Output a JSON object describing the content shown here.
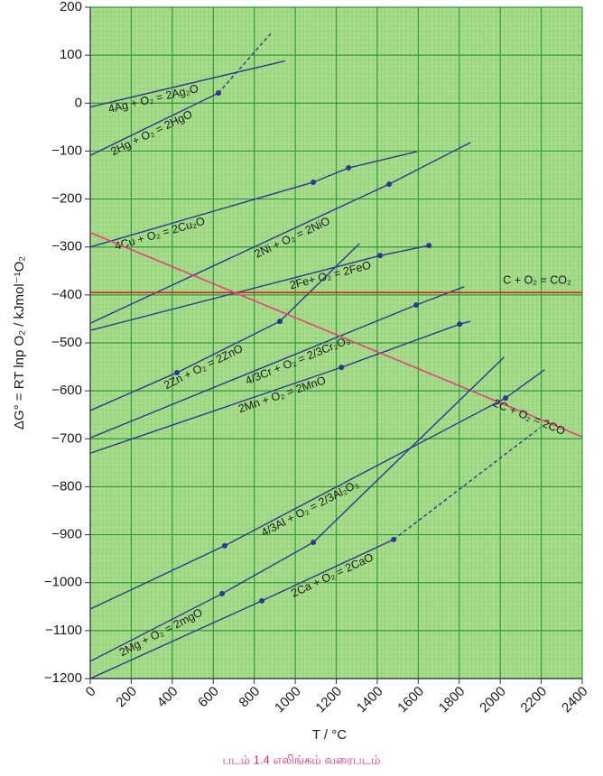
{
  "chart_data": {
    "type": "line",
    "xlabel": "T / °C",
    "ylabel": "ΔG° = RT lnp O₂ / kJmol⁻¹O₂",
    "caption": "படம் 1.4 எலிங்கம் வரைபடம்",
    "xlim": [
      0,
      2400
    ],
    "ylim": [
      -1200,
      200
    ],
    "xticks": [
      0,
      200,
      400,
      600,
      800,
      1000,
      1200,
      1400,
      1600,
      1800,
      2000,
      2200,
      2400
    ],
    "yticks": [
      {
        "value": -1200,
        "label": "−1200"
      },
      {
        "value": -1100,
        "label": "−1100"
      },
      {
        "value": -1000,
        "label": "−1000"
      },
      {
        "value": -900,
        "label": "−900"
      },
      {
        "value": -800,
        "label": "−800"
      },
      {
        "value": -700,
        "label": "−700"
      },
      {
        "value": -600,
        "label": "−600"
      },
      {
        "value": -500,
        "label": "−500"
      },
      {
        "value": -400,
        "label": "−400"
      },
      {
        "value": -300,
        "label": "−300"
      },
      {
        "value": -200,
        "label": "−200"
      },
      {
        "value": -100,
        "label": "−100"
      },
      0,
      100,
      200
    ],
    "grid": true,
    "series": [
      {
        "name": "4Ag + O₂ = 2Ag₂O",
        "color": "#2b3990",
        "x": [
          0,
          950
        ],
        "values": [
          -8,
          88
        ],
        "dashed": [
          false
        ],
        "markers": [
          false,
          false
        ]
      },
      {
        "name": "2Hg + O₂ = 2HgO",
        "color": "#2b3990",
        "x": [
          0,
          625,
          880
        ],
        "values": [
          -109,
          21,
          145
        ],
        "dashed": [
          false,
          true
        ],
        "markers": [
          false,
          true,
          false
        ]
      },
      {
        "name": "4Cu + O₂ = 2Cu₂O",
        "color": "#2b3990",
        "x": [
          0,
          1088,
          1260,
          1595
        ],
        "values": [
          -300,
          -165,
          -135,
          -101
        ],
        "dashed": [
          false,
          false,
          false
        ],
        "markers": [
          false,
          true,
          true,
          false
        ]
      },
      {
        "name": "2Ni + O₂ = 2NiO",
        "color": "#2b3990",
        "x": [
          0,
          1458,
          1855
        ],
        "values": [
          -459,
          -169,
          -82
        ],
        "dashed": [
          false,
          false
        ],
        "markers": [
          false,
          true,
          false
        ]
      },
      {
        "name": "2Fe+ O₂ = 2FeO",
        "color": "#2b3990",
        "x": [
          0,
          1414,
          1652
        ],
        "values": [
          -474,
          -318,
          -297
        ],
        "dashed": [
          false,
          false
        ],
        "markers": [
          false,
          true,
          true
        ]
      },
      {
        "name": "2Zn + O₂ = 2ZnO",
        "color": "#2b3990",
        "x": [
          0,
          423,
          925,
          1313
        ],
        "values": [
          -641,
          -562,
          -455,
          -293
        ],
        "dashed": [
          false,
          false,
          false
        ],
        "markers": [
          false,
          true,
          true,
          false
        ]
      },
      {
        "name": "4/3Cr + O₂ = 2/3Cr₂O₃",
        "color": "#2b3990",
        "x": [
          0,
          1590,
          1824
        ],
        "values": [
          -698,
          -421,
          -383
        ],
        "dashed": [
          false,
          false
        ],
        "markers": [
          false,
          true,
          false
        ]
      },
      {
        "name": "2Mn + O₂ = 2MnO",
        "color": "#2b3990",
        "x": [
          0,
          1225,
          1802,
          1855
        ],
        "values": [
          -730,
          -551,
          -461,
          -455
        ],
        "dashed": [
          false,
          false,
          false
        ],
        "markers": [
          false,
          true,
          true,
          false
        ]
      },
      {
        "name": "C + O₂ = CO₂",
        "color": "#e02020",
        "x": [
          0,
          2400
        ],
        "values": [
          -395,
          -395
        ],
        "dashed": [
          false
        ],
        "markers": [
          false,
          false
        ]
      },
      {
        "name": "2C + O₂ = 2CO",
        "color": "#e8407a",
        "x": [
          0,
          2400
        ],
        "values": [
          -270,
          -696
        ],
        "dashed": [
          false
        ],
        "markers": [
          false,
          false
        ]
      },
      {
        "name": "4/3Al + O₂ = 2/3Al₂O₃",
        "color": "#2b3990",
        "x": [
          0,
          656,
          2026,
          2216
        ],
        "values": [
          -1055,
          -923,
          -615,
          -556
        ],
        "dashed": [
          false,
          false,
          false
        ],
        "markers": [
          false,
          true,
          true,
          false
        ]
      },
      {
        "name": "2Mg + O₂ = 2mgO",
        "color": "#2b3990",
        "x": [
          0,
          643,
          1088,
          2018
        ],
        "values": [
          -1164,
          -1023,
          -916,
          -530
        ],
        "dashed": [
          false,
          false,
          false
        ],
        "markers": [
          false,
          true,
          true,
          false
        ]
      },
      {
        "name": "2Ca + O₂ = 2CaO",
        "color": "#2b3990",
        "x": [
          0,
          837,
          1480,
          2194
        ],
        "values": [
          -1200,
          -1038,
          -910,
          -677
        ],
        "dashed": [
          false,
          false,
          true
        ],
        "markers": [
          false,
          true,
          true,
          false
        ]
      }
    ]
  }
}
